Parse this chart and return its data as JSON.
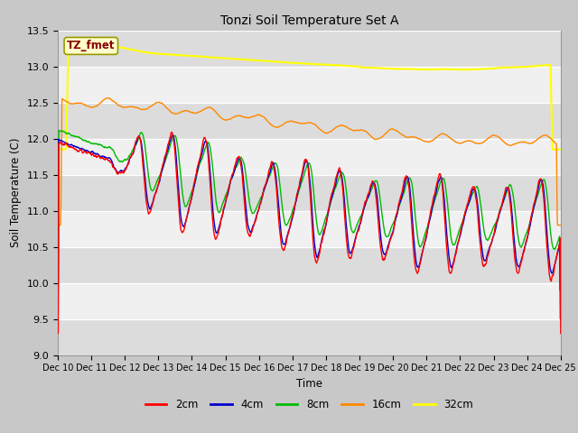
{
  "title": "Tonzi Soil Temperature Set A",
  "xlabel": "Time",
  "ylabel": "Soil Temperature (C)",
  "ylim": [
    9.0,
    13.5
  ],
  "yticks": [
    9.0,
    9.5,
    10.0,
    10.5,
    11.0,
    11.5,
    12.0,
    12.5,
    13.0,
    13.5
  ],
  "legend_label": "TZ_fmet",
  "legend_box_color": "#ffffcc",
  "legend_box_text_color": "#8b0000",
  "legend_box_edge_color": "#999900",
  "fig_bg": "#c8c8c8",
  "axes_bg_light": "#f0f0f0",
  "axes_bg_dark": "#dcdcdc",
  "grid_color": "#ffffff",
  "series": {
    "2cm": {
      "color": "#ff0000",
      "lw": 1.0
    },
    "4cm": {
      "color": "#0000cc",
      "lw": 1.0
    },
    "8cm": {
      "color": "#00bb00",
      "lw": 1.0
    },
    "16cm": {
      "color": "#ff8800",
      "lw": 1.0
    },
    "32cm": {
      "color": "#ffff00",
      "lw": 1.5
    }
  },
  "xtick_labels": [
    "Dec 10",
    "Dec 11",
    "Dec 12",
    "Dec 13",
    "Dec 14",
    "Dec 15",
    "Dec 16",
    "Dec 17",
    "Dec 18",
    "Dec 19",
    "Dec 20",
    "Dec 21",
    "Dec 22",
    "Dec 23",
    "Dec 24",
    "Dec 25"
  ],
  "n_points": 1441,
  "time_days": 15
}
